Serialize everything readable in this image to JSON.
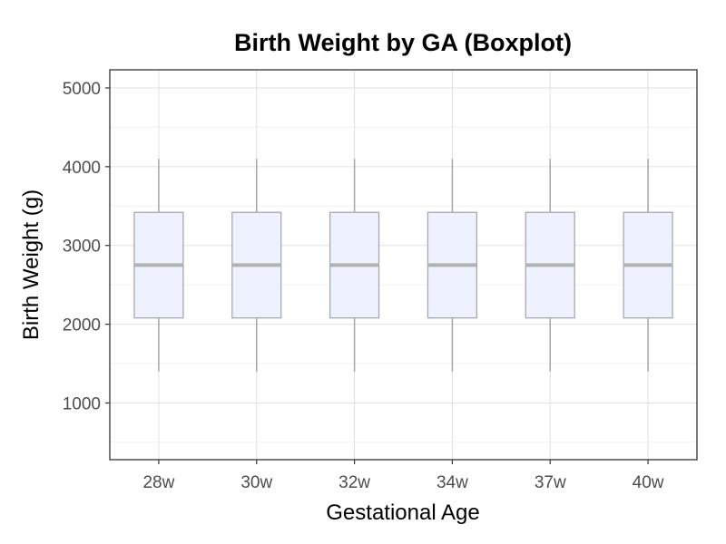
{
  "chart_data": {
    "type": "boxplot",
    "title": "Birth Weight by GA (Boxplot)",
    "xlabel": "Gestational Age",
    "ylabel": "Birth Weight (g)",
    "categories": [
      "28w",
      "30w",
      "32w",
      "34w",
      "37w",
      "40w"
    ],
    "boxes": [
      {
        "category": "28w",
        "whisker_low": 1400,
        "q1": 2080,
        "median": 2750,
        "q3": 3420,
        "whisker_high": 4100
      },
      {
        "category": "30w",
        "whisker_low": 1400,
        "q1": 2080,
        "median": 2750,
        "q3": 3420,
        "whisker_high": 4100
      },
      {
        "category": "32w",
        "whisker_low": 1400,
        "q1": 2080,
        "median": 2750,
        "q3": 3420,
        "whisker_high": 4100
      },
      {
        "category": "34w",
        "whisker_low": 1400,
        "q1": 2080,
        "median": 2750,
        "q3": 3420,
        "whisker_high": 4100
      },
      {
        "category": "37w",
        "whisker_low": 1400,
        "q1": 2080,
        "median": 2750,
        "q3": 3420,
        "whisker_high": 4100
      },
      {
        "category": "40w",
        "whisker_low": 1400,
        "q1": 2080,
        "median": 2750,
        "q3": 3420,
        "whisker_high": 4100
      }
    ],
    "ylim": [
      280,
      5230
    ],
    "yticks": [
      1000,
      2000,
      3000,
      4000,
      5000
    ],
    "grid": true,
    "legend": "none",
    "colors": {
      "box_fill": "#eef2fe",
      "box_stroke": "#a8a8b0",
      "median": "#b2b2b2",
      "whisker": "#a6a6a6",
      "grid_major": "#e0e0e0",
      "grid_minor": "#f0f0f0",
      "panel_border": "#333333"
    }
  }
}
